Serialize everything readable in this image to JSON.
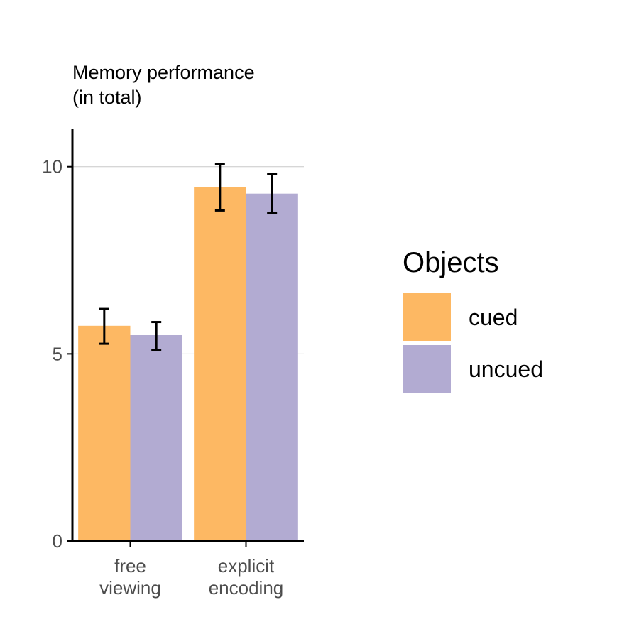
{
  "chart_data": {
    "type": "bar",
    "ylabel_lines": [
      "Memory performance",
      "(in total)"
    ],
    "xlabel": "",
    "categories": [
      {
        "lines": [
          "free",
          "viewing"
        ]
      },
      {
        "lines": [
          "explicit",
          "encoding"
        ]
      }
    ],
    "series": [
      {
        "name": "cued",
        "color": "#fdb863",
        "values": [
          5.75,
          9.45
        ],
        "err_low": [
          5.27,
          8.83
        ],
        "err_high": [
          6.2,
          10.07
        ]
      },
      {
        "name": "uncued",
        "color": "#b2abd2",
        "values": [
          5.5,
          9.28
        ],
        "err_low": [
          5.1,
          8.77
        ],
        "err_high": [
          5.85,
          9.8
        ]
      }
    ],
    "ylim": [
      0,
      11
    ],
    "yticks": [
      0,
      5,
      10
    ],
    "grid": true,
    "legend": {
      "title": "Objects",
      "placement": "right"
    }
  }
}
